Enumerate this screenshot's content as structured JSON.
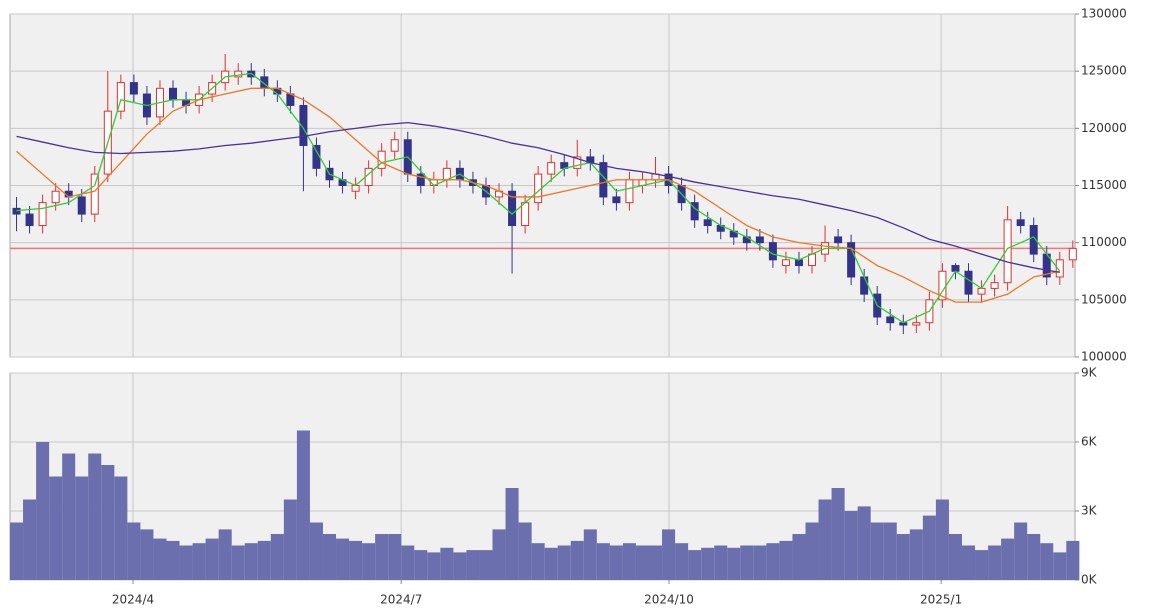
{
  "chart_data": [
    {
      "type": "candlestick",
      "ylim": [
        100000,
        130000
      ],
      "yticks": [
        100000,
        105000,
        110000,
        115000,
        120000,
        125000,
        130000
      ],
      "grid": true,
      "up_color": "#e03030",
      "down_color": "#33338a",
      "hline": {
        "value": 109500,
        "color": "#ff7070"
      },
      "x": [
        1.5,
        4.5,
        7.5,
        10.5,
        13.5,
        16.5,
        19.5,
        22.5,
        25.5,
        28.5,
        31.5,
        34.5,
        37.5,
        40.5,
        43.5,
        46.5,
        49.5,
        52.5,
        55.5,
        58.5,
        61.5,
        64.5,
        67.5,
        70.5,
        73.5,
        76.5,
        79.5,
        82.5,
        85.5,
        88.5,
        91.5,
        94.5,
        97.5,
        100.5,
        103.5,
        106.5,
        109.5,
        112.5,
        115.5,
        118.5,
        121.5,
        124.5,
        127.5,
        130.5,
        133.5,
        136.5,
        139.5,
        142.5,
        145.5,
        148.5,
        151.5,
        154.5,
        157.5,
        160.5,
        163.5,
        166.5,
        169.5,
        172.5,
        175.5,
        178.5,
        181.5,
        184.5,
        187.5,
        190.5,
        193.5,
        196.5,
        199.5,
        202.5,
        205.5,
        208.5,
        211.5,
        214.5,
        217.5,
        220.5,
        223.5,
        226.5,
        229.5,
        232.5,
        235.5,
        238.5,
        241.5,
        244.5
      ],
      "open": [
        113000,
        112500,
        111500,
        113500,
        114500,
        114000,
        112500,
        116000,
        121500,
        124000,
        123000,
        121000,
        123500,
        122500,
        122000,
        123000,
        124000,
        124500,
        125000,
        124500,
        123500,
        123000,
        122000,
        118500,
        116500,
        115500,
        114500,
        115000,
        116500,
        118000,
        119000,
        116000,
        115000,
        115500,
        116500,
        115500,
        115000,
        114000,
        114500,
        111500,
        113500,
        116000,
        117000,
        116500,
        117500,
        117000,
        114000,
        113500,
        115000,
        115500,
        116000,
        115000,
        113500,
        112000,
        111500,
        111000,
        110500,
        110500,
        110000,
        108000,
        108500,
        108000,
        109000,
        110500,
        110000,
        107000,
        105500,
        103500,
        103000,
        102800,
        103000,
        105000,
        108000,
        107500,
        105500,
        106000,
        106500,
        112000,
        111500,
        109000,
        107000,
        108500
      ],
      "high": [
        114000,
        113200,
        114200,
        115200,
        115200,
        114700,
        116700,
        125000,
        124700,
        124700,
        123700,
        124200,
        124200,
        123200,
        123700,
        124700,
        126500,
        125700,
        125700,
        125200,
        124200,
        123700,
        122700,
        119200,
        117200,
        116200,
        115700,
        117200,
        118700,
        119700,
        119700,
        116700,
        116200,
        117200,
        117200,
        116200,
        115700,
        115200,
        115200,
        114200,
        116700,
        117700,
        117700,
        119000,
        118200,
        117700,
        114700,
        116200,
        116200,
        117500,
        116700,
        115700,
        114200,
        112700,
        112200,
        111700,
        111200,
        111200,
        110700,
        109200,
        109200,
        109700,
        111500,
        111200,
        110700,
        107700,
        106200,
        104200,
        103700,
        103700,
        105700,
        108200,
        108200,
        108200,
        106700,
        107200,
        113200,
        112700,
        112200,
        109700,
        109200,
        110200
      ],
      "low": [
        111000,
        110800,
        110800,
        112800,
        113300,
        111800,
        111800,
        115300,
        120800,
        122300,
        120300,
        120300,
        121800,
        121300,
        121300,
        122300,
        123300,
        123800,
        123800,
        122800,
        122300,
        121300,
        114500,
        115800,
        114800,
        114300,
        113800,
        114300,
        115800,
        117300,
        115300,
        114300,
        114300,
        114800,
        114800,
        114300,
        113300,
        113300,
        107300,
        110800,
        112800,
        115300,
        115800,
        115800,
        116300,
        113300,
        112800,
        112800,
        114300,
        114800,
        114300,
        112800,
        111300,
        110800,
        110300,
        109800,
        109300,
        109300,
        107800,
        107300,
        107300,
        107300,
        108300,
        109300,
        106300,
        104800,
        102800,
        102300,
        102000,
        102100,
        102300,
        104300,
        106800,
        104800,
        104800,
        105300,
        105800,
        110800,
        108300,
        106300,
        106300,
        107800
      ],
      "close": [
        112500,
        111500,
        113500,
        114500,
        114000,
        112500,
        116000,
        121500,
        124000,
        123000,
        121000,
        123500,
        122500,
        122000,
        123000,
        124000,
        125000,
        125000,
        124500,
        123500,
        123000,
        122000,
        118500,
        116500,
        115500,
        115000,
        115000,
        116500,
        118000,
        119000,
        116000,
        115000,
        115500,
        116500,
        115500,
        115000,
        114000,
        114500,
        111500,
        113500,
        116000,
        117000,
        116500,
        117500,
        117000,
        114000,
        113500,
        115500,
        115500,
        116000,
        115000,
        113500,
        112000,
        111500,
        111000,
        110500,
        110000,
        110000,
        108500,
        108500,
        108000,
        109000,
        110000,
        110000,
        107000,
        105500,
        103500,
        103000,
        102800,
        103000,
        105000,
        107500,
        107500,
        105500,
        106000,
        106500,
        112000,
        111500,
        109000,
        107000,
        108500,
        109500
      ],
      "lines": {
        "x": [
          1.5,
          7.5,
          13.5,
          19.5,
          25.5,
          31.5,
          37.5,
          43.5,
          49.5,
          55.5,
          61.5,
          67.5,
          73.5,
          79.5,
          85.5,
          91.5,
          97.5,
          103.5,
          109.5,
          115.5,
          121.5,
          127.5,
          133.5,
          139.5,
          145.5,
          151.5,
          157.5,
          163.5,
          169.5,
          175.5,
          181.5,
          187.5,
          193.5,
          199.5,
          205.5,
          211.5,
          217.5,
          223.5,
          229.5,
          235.5,
          241.5
        ],
        "series": [
          {
            "color": "#33cc33",
            "values": [
              112800,
              113000,
              113500,
              115000,
              122500,
              122000,
              122500,
              122500,
              124500,
              124800,
              123000,
              120000,
              116000,
              115000,
              117000,
              117500,
              115000,
              116000,
              114500,
              112500,
              114500,
              116500,
              117000,
              114500,
              115000,
              115500,
              113000,
              111500,
              110500,
              109000,
              108500,
              109500,
              109500,
              104500,
              103000,
              104000,
              107500,
              106000,
              109500,
              110500,
              107500
            ]
          },
          {
            "color": "#ee7722",
            "values": [
              118000,
              116000,
              114000,
              114500,
              117000,
              119500,
              121500,
              122500,
              123000,
              123500,
              123500,
              122500,
              121000,
              119000,
              117000,
              116000,
              115500,
              115500,
              115000,
              114000,
              114000,
              114500,
              115000,
              115500,
              115500,
              115500,
              114500,
              113000,
              111500,
              110500,
              110000,
              109700,
              109500,
              108000,
              107000,
              105800,
              104800,
              104800,
              105500,
              107000,
              107500
            ]
          },
          {
            "color": "#4b2fa0",
            "values": [
              119300,
              118800,
              118300,
              117900,
              117800,
              117900,
              118000,
              118200,
              118500,
              118700,
              119000,
              119300,
              119700,
              120000,
              120300,
              120500,
              120200,
              119800,
              119300,
              118700,
              118300,
              117700,
              117000,
              116500,
              116200,
              115800,
              115300,
              114900,
              114500,
              114100,
              113800,
              113300,
              112800,
              112200,
              111300,
              110300,
              109700,
              109000,
              108300,
              107800,
              107400
            ]
          }
        ]
      }
    },
    {
      "type": "bar",
      "ylim": [
        0,
        9000
      ],
      "yticks": [
        {
          "value": 0,
          "label": "0K"
        },
        {
          "value": 3000,
          "label": "3K"
        },
        {
          "value": 6000,
          "label": "6K"
        },
        {
          "value": 9000,
          "label": "9K"
        }
      ],
      "grid": true,
      "color": "#6b6fae",
      "xlim": [
        0,
        245
      ],
      "xticks": [
        {
          "value": 28.3,
          "label": "2024/4"
        },
        {
          "value": 90,
          "label": "2024/7"
        },
        {
          "value": 151.6,
          "label": "2024/10"
        },
        {
          "value": 214.2,
          "label": "2025/1"
        }
      ],
      "values": [
        2500,
        3500,
        6000,
        4500,
        5500,
        4500,
        5500,
        5000,
        4500,
        2500,
        2200,
        1800,
        1700,
        1500,
        1600,
        1800,
        2200,
        1500,
        1600,
        1700,
        2000,
        3500,
        6500,
        2500,
        2000,
        1800,
        1700,
        1600,
        2000,
        2000,
        1500,
        1300,
        1200,
        1400,
        1200,
        1300,
        1300,
        2200,
        4000,
        2500,
        1600,
        1400,
        1500,
        1700,
        2200,
        1600,
        1500,
        1600,
        1500,
        1500,
        2200,
        1600,
        1300,
        1400,
        1500,
        1400,
        1500,
        1500,
        1600,
        1700,
        2000,
        2500,
        3500,
        4000,
        3000,
        3200,
        2500,
        2500,
        2000,
        2200,
        2800,
        3500,
        2000,
        1500,
        1300,
        1500,
        1800,
        2500,
        2000,
        1600,
        1200,
        1700
      ]
    }
  ]
}
